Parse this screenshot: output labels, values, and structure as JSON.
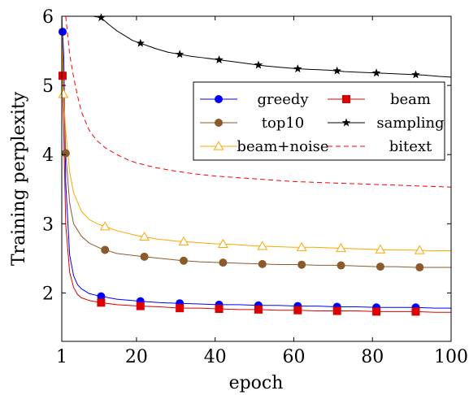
{
  "chart_data": {
    "type": "line",
    "title": "",
    "xlabel": "epoch",
    "ylabel": "Training perplexity",
    "xlim": [
      1,
      100
    ],
    "ylim": [
      1.3,
      6
    ],
    "x_ticks": [
      1,
      20,
      40,
      60,
      80,
      100
    ],
    "y_ticks": [
      2,
      3,
      4,
      5,
      6
    ],
    "grid": false,
    "legend": {
      "placement": "right",
      "columns": 2
    },
    "series": [
      {
        "name": "greedy",
        "color": "#0000ff",
        "marker": "circle",
        "x": [
          1,
          1.5,
          2,
          3,
          4,
          5,
          6,
          8,
          11,
          15,
          21,
          26,
          31,
          36,
          41,
          46,
          51,
          56,
          61,
          66,
          71,
          76,
          81,
          86,
          91,
          96,
          100
        ],
        "y": [
          6.0,
          5.44,
          3.6,
          2.55,
          2.25,
          2.12,
          2.06,
          1.99,
          1.95,
          1.91,
          1.88,
          1.86,
          1.85,
          1.84,
          1.83,
          1.83,
          1.82,
          1.82,
          1.81,
          1.81,
          1.8,
          1.8,
          1.79,
          1.79,
          1.79,
          1.78,
          1.78
        ],
        "marker_x": [
          1.2,
          11,
          21,
          31,
          41,
          51,
          61,
          71,
          81,
          91
        ]
      },
      {
        "name": "beam",
        "color": "#dd0000",
        "marker": "square",
        "x": [
          1,
          1.2,
          2,
          3,
          4,
          5,
          6,
          8,
          11,
          15,
          21,
          26,
          31,
          36,
          41,
          46,
          51,
          56,
          61,
          66,
          71,
          76,
          81,
          86,
          91,
          96,
          100
        ],
        "y": [
          6.0,
          5.14,
          3.0,
          2.3,
          2.08,
          1.98,
          1.93,
          1.89,
          1.86,
          1.83,
          1.81,
          1.8,
          1.78,
          1.78,
          1.77,
          1.76,
          1.76,
          1.75,
          1.75,
          1.74,
          1.74,
          1.74,
          1.73,
          1.73,
          1.73,
          1.72,
          1.72
        ],
        "marker_x": [
          1.2,
          11,
          21,
          31,
          41,
          51,
          61,
          71,
          81,
          91
        ]
      },
      {
        "name": "top10",
        "color": "#8b5a2b",
        "marker": "circle",
        "x": [
          1,
          2,
          3,
          4,
          6,
          8,
          11,
          15,
          21,
          26,
          31,
          36,
          41,
          46,
          51,
          56,
          61,
          66,
          71,
          76,
          81,
          86,
          91,
          96,
          100
        ],
        "y": [
          6.0,
          4.02,
          3.3,
          3.0,
          2.82,
          2.72,
          2.64,
          2.57,
          2.53,
          2.5,
          2.47,
          2.45,
          2.44,
          2.43,
          2.42,
          2.41,
          2.41,
          2.4,
          2.4,
          2.39,
          2.38,
          2.38,
          2.37,
          2.37,
          2.37
        ],
        "marker_x": [
          2,
          12,
          22,
          32,
          42,
          52,
          62,
          72,
          82,
          92
        ]
      },
      {
        "name": "sampling",
        "color": "#000000",
        "marker": "star",
        "x": [
          9,
          11,
          13,
          15,
          17,
          19,
          21,
          23,
          25,
          28,
          31,
          34,
          37,
          41,
          45,
          49,
          53,
          57,
          61,
          65,
          69,
          73,
          77,
          81,
          85,
          89,
          93,
          97,
          100
        ],
        "y": [
          6.0,
          5.98,
          5.88,
          5.79,
          5.72,
          5.65,
          5.61,
          5.57,
          5.53,
          5.48,
          5.45,
          5.42,
          5.4,
          5.37,
          5.34,
          5.31,
          5.28,
          5.26,
          5.24,
          5.23,
          5.22,
          5.2,
          5.19,
          5.18,
          5.17,
          5.16,
          5.15,
          5.13,
          5.12
        ],
        "marker_x": [
          11,
          21,
          31,
          41,
          51,
          61,
          71,
          81,
          91
        ]
      },
      {
        "name": "beam+noise",
        "color": "#ffa500",
        "marker": "triangle",
        "x": [
          1,
          1.3,
          2,
          3,
          4,
          6,
          8,
          10,
          12,
          15,
          20,
          25,
          30,
          35,
          40,
          45,
          50,
          55,
          60,
          65,
          70,
          75,
          80,
          85,
          90,
          95,
          100
        ],
        "y": [
          6.0,
          4.96,
          4.35,
          3.75,
          3.45,
          3.18,
          3.06,
          3.0,
          2.96,
          2.9,
          2.83,
          2.78,
          2.75,
          2.73,
          2.71,
          2.7,
          2.68,
          2.67,
          2.66,
          2.66,
          2.65,
          2.64,
          2.63,
          2.62,
          2.62,
          2.61,
          2.61
        ],
        "marker_x": [
          1.4,
          12,
          22,
          32,
          42,
          52,
          62,
          72,
          82,
          92
        ]
      },
      {
        "name": "bitext",
        "color": "#ff0000",
        "marker": "none",
        "dash": "dashed",
        "x": [
          2,
          3,
          4,
          5,
          6,
          7,
          8,
          9,
          10,
          12,
          15,
          18,
          20,
          25,
          30,
          35,
          40,
          45,
          50,
          55,
          60,
          65,
          70,
          75,
          80,
          85,
          90,
          95,
          100
        ],
        "y": [
          6.0,
          5.45,
          5.12,
          4.85,
          4.62,
          4.48,
          4.35,
          4.27,
          4.2,
          4.1,
          4.0,
          3.92,
          3.88,
          3.81,
          3.76,
          3.72,
          3.69,
          3.67,
          3.65,
          3.63,
          3.61,
          3.6,
          3.59,
          3.58,
          3.57,
          3.56,
          3.55,
          3.54,
          3.53
        ],
        "marker_x": []
      }
    ]
  }
}
